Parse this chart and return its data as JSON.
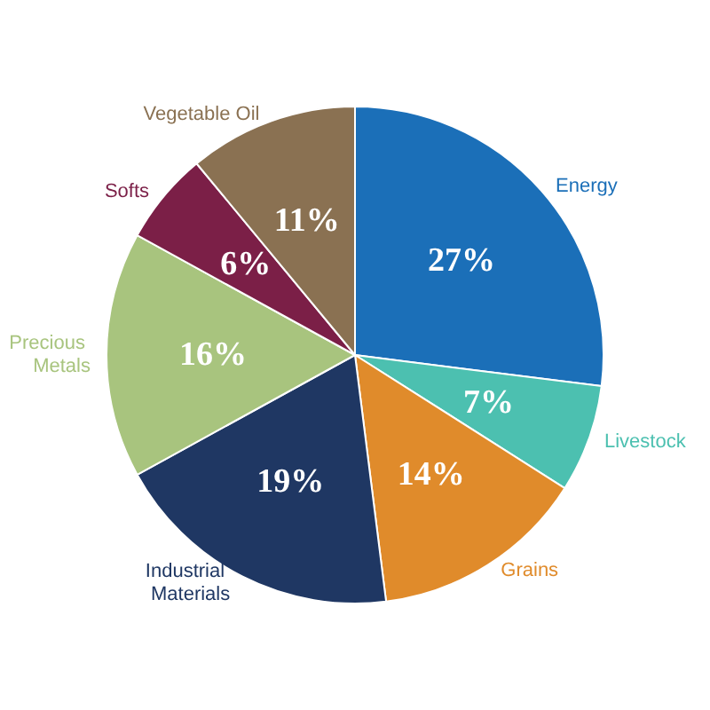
{
  "chart_data": {
    "type": "pie",
    "categories": [
      "Energy",
      "Livestock",
      "Grains",
      "Industrial Materials",
      "Precious Metals",
      "Softs",
      "Vegetable Oil"
    ],
    "values": [
      27,
      7,
      14,
      19,
      16,
      6,
      11
    ],
    "colors": [
      "#1b6fb8",
      "#4cc0b0",
      "#e08b2b",
      "#1f3763",
      "#a8c47e",
      "#7b1f47",
      "#8a7152"
    ],
    "value_labels": [
      "27%",
      "7%",
      "14%",
      "19%",
      "16%",
      "6%",
      "11%"
    ],
    "legend": false
  }
}
